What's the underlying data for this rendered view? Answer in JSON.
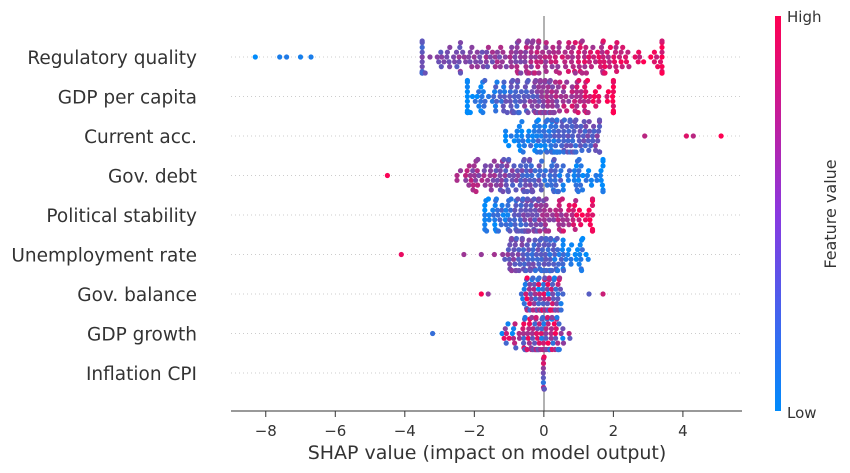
{
  "chart_data": {
    "type": "scatter",
    "subtype": "shap-beeswarm",
    "xlabel": "SHAP value (impact on model output)",
    "xlim": [
      -9,
      5.7
    ],
    "xticks": [
      -8,
      -6,
      -4,
      -2,
      0,
      2,
      4
    ],
    "xtick_labels": [
      "−8",
      "−6",
      "−4",
      "−2",
      "0",
      "2",
      "4"
    ],
    "features": [
      {
        "name": "Regulatory quality",
        "min": -8.3,
        "max": 4.2,
        "core": [
          -3.5,
          3.4
        ],
        "n": 240,
        "lowhigh": "positive",
        "spread": 1.0,
        "outliers": [
          -8.3,
          -7.6,
          -7.4,
          -7.0,
          -6.7
        ]
      },
      {
        "name": "GDP per capita",
        "min": -2.3,
        "max": 2.1,
        "core": [
          -2.2,
          2.0
        ],
        "n": 200,
        "lowhigh": "positive",
        "spread": 1.0,
        "outliers": []
      },
      {
        "name": "Current acc.",
        "min": -1.1,
        "max": 5.1,
        "core": [
          -1.1,
          1.6
        ],
        "n": 150,
        "lowhigh": "positive",
        "spread": 1.0,
        "outliers": [
          2.9,
          4.1,
          4.3,
          5.1
        ]
      },
      {
        "name": "Gov. debt",
        "min": -4.5,
        "max": 1.8,
        "core": [
          -2.5,
          1.7
        ],
        "n": 170,
        "lowhigh": "negative",
        "spread": 0.9,
        "outliers": [
          -4.5
        ]
      },
      {
        "name": "Political stability",
        "min": -1.7,
        "max": 1.4,
        "core": [
          -1.7,
          1.4
        ],
        "n": 170,
        "lowhigh": "positive",
        "spread": 0.9,
        "outliers": []
      },
      {
        "name": "Unemployment rate",
        "min": -4.1,
        "max": 1.6,
        "core": [
          -1.6,
          1.5
        ],
        "n": 130,
        "lowhigh": "negative",
        "spread": 0.7,
        "outliers": [
          -4.1,
          -2.3,
          -1.8
        ]
      },
      {
        "name": "Gov. balance",
        "min": -1.8,
        "max": 1.7,
        "core": [
          -0.8,
          0.8
        ],
        "n": 110,
        "lowhigh": "mixed",
        "spread": 0.55,
        "outliers": [
          -1.8,
          -1.6,
          1.7,
          1.3
        ]
      },
      {
        "name": "GDP growth",
        "min": -3.2,
        "max": 1.1,
        "core": [
          -1.3,
          1.0
        ],
        "n": 120,
        "lowhigh": "mixed",
        "spread": 0.55,
        "outliers": [
          -3.2,
          -1.2
        ]
      },
      {
        "name": "Inflation CPI",
        "min": -0.05,
        "max": 0.05,
        "core": [
          -0.05,
          0.05
        ],
        "n": 12,
        "lowhigh": "mixed",
        "spread": 0.15,
        "outliers": []
      }
    ],
    "colorbar": {
      "label": "Feature value",
      "high_label": "High",
      "low_label": "Low",
      "high_color": "#ff0052",
      "low_color": "#008bfb"
    }
  }
}
